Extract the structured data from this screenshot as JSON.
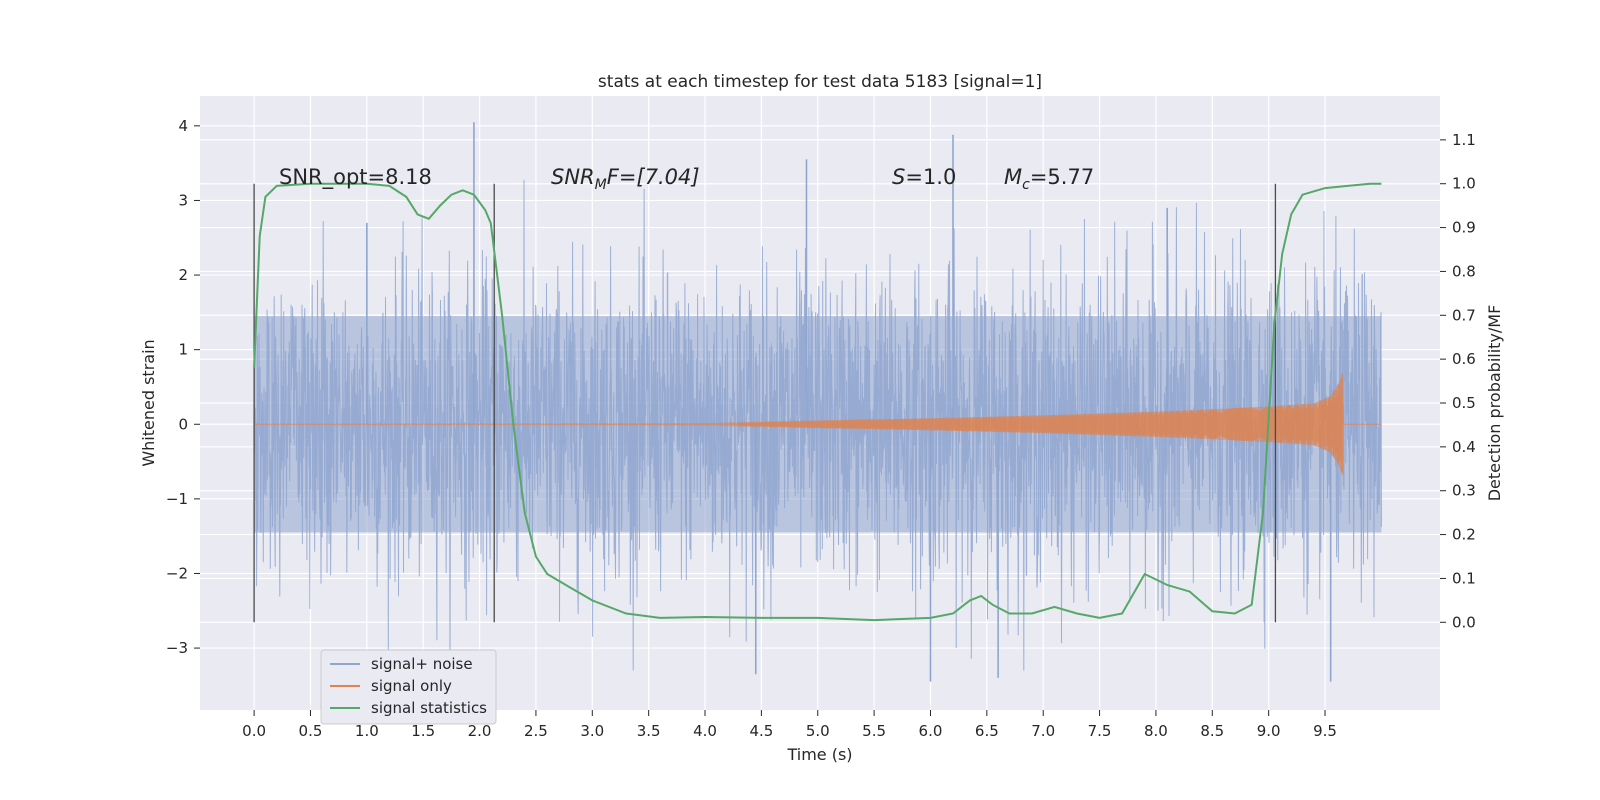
{
  "chart_data": {
    "type": "line",
    "title": "stats at each timestep for test data 5183 [signal=1]",
    "xlabel": "Time (s)",
    "ylabel": "Whitened strain",
    "ylabel_right": "Detection probability/MF",
    "xlim": [
      -0.48,
      10.52
    ],
    "ylim": [
      -3.83,
      4.4
    ],
    "ylim_right": [
      -0.2,
      1.2
    ],
    "x_ticks": [
      0.0,
      0.5,
      1.0,
      1.5,
      2.0,
      2.5,
      3.0,
      3.5,
      4.0,
      4.5,
      5.0,
      5.5,
      6.0,
      6.5,
      7.0,
      7.5,
      8.0,
      8.5,
      9.0,
      9.5
    ],
    "x_tick_labels": [
      "0.0",
      "0.5",
      "1.0",
      "1.5",
      "2.0",
      "2.5",
      "3.0",
      "3.5",
      "4.0",
      "4.5",
      "5.0",
      "5.5",
      "6.0",
      "6.5",
      "7.0",
      "7.5",
      "8.0",
      "8.5",
      "9.0",
      "9.5"
    ],
    "y_ticks": [
      -3,
      -2,
      -1,
      0,
      1,
      2,
      3,
      4
    ],
    "y_tick_labels": [
      "−3",
      "−2",
      "−1",
      "0",
      "1",
      "2",
      "3",
      "4"
    ],
    "y_right_ticks": [
      0.0,
      0.1,
      0.2,
      0.3,
      0.4,
      0.5,
      0.6,
      0.7,
      0.8,
      0.9,
      1.0,
      1.1
    ],
    "y_right_tick_labels": [
      "0.0",
      "0.1",
      "0.2",
      "0.3",
      "0.4",
      "0.5",
      "0.6",
      "0.7",
      "0.8",
      "0.9",
      "1.0",
      "1.1"
    ],
    "grid": true,
    "legend_position": "lower-left",
    "annotations": {
      "snr_opt": "SNR_opt=8.18",
      "snr_mf_base": "SNR",
      "snr_mf_sub": "M",
      "snr_mf_tail": "F=[7.04]",
      "s_sym": "S",
      "s_val": "=1.0",
      "mc_base": "M",
      "mc_sub": "c",
      "mc_val": "=5.77"
    },
    "vertical_markers_x": [
      0.0,
      2.13,
      9.06
    ],
    "series": [
      {
        "name": "signal+ noise",
        "color": "#8fa6d0",
        "description_range": [
          0.0,
          10.0
        ],
        "values_note": "dense whitened noise roughly within [-3.4, 4.05]",
        "peaks": [
          [
            1.0,
            2.7
          ],
          [
            1.95,
            4.05
          ],
          [
            6.2,
            3.88
          ],
          [
            4.9,
            3.55
          ],
          [
            6.0,
            -3.45
          ],
          [
            9.55,
            -3.45
          ],
          [
            6.6,
            -3.4
          ],
          [
            8.1,
            2.9
          ],
          [
            4.45,
            -3.35
          ]
        ]
      },
      {
        "name": "signal only",
        "color": "#dd8452",
        "chirp_start": 4.3,
        "chirp_end": 9.66,
        "envelope": [
          [
            0.0,
            0.005
          ],
          [
            4.0,
            0.01
          ],
          [
            5.0,
            0.05
          ],
          [
            6.0,
            0.08
          ],
          [
            7.0,
            0.12
          ],
          [
            8.0,
            0.17
          ],
          [
            8.5,
            0.2
          ],
          [
            9.0,
            0.24
          ],
          [
            9.4,
            0.28
          ],
          [
            9.55,
            0.38
          ],
          [
            9.62,
            0.55
          ],
          [
            9.66,
            0.7
          ],
          [
            9.67,
            0.0
          ]
        ]
      },
      {
        "name": "signal statistics",
        "color": "#55a868",
        "axis": "right",
        "x": [
          0.0,
          0.05,
          0.1,
          0.2,
          0.5,
          1.0,
          1.2,
          1.35,
          1.45,
          1.55,
          1.65,
          1.75,
          1.85,
          1.95,
          2.05,
          2.1,
          2.2,
          2.3,
          2.4,
          2.5,
          2.6,
          2.8,
          3.0,
          3.3,
          3.6,
          4.0,
          4.5,
          5.0,
          5.5,
          6.0,
          6.2,
          6.35,
          6.45,
          6.55,
          6.7,
          6.9,
          7.1,
          7.3,
          7.5,
          7.7,
          7.9,
          8.1,
          8.3,
          8.5,
          8.7,
          8.85,
          8.95,
          9.05,
          9.12,
          9.2,
          9.3,
          9.5,
          9.7,
          9.9,
          10.0
        ],
        "values": [
          0.58,
          0.88,
          0.97,
          0.995,
          1.0,
          1.0,
          0.995,
          0.97,
          0.93,
          0.92,
          0.95,
          0.975,
          0.985,
          0.975,
          0.94,
          0.91,
          0.7,
          0.45,
          0.25,
          0.15,
          0.11,
          0.08,
          0.05,
          0.02,
          0.01,
          0.012,
          0.01,
          0.01,
          0.005,
          0.01,
          0.02,
          0.05,
          0.06,
          0.04,
          0.02,
          0.02,
          0.035,
          0.02,
          0.01,
          0.02,
          0.11,
          0.085,
          0.07,
          0.025,
          0.02,
          0.04,
          0.25,
          0.68,
          0.84,
          0.93,
          0.975,
          0.99,
          0.995,
          1.0,
          1.0
        ]
      }
    ]
  }
}
